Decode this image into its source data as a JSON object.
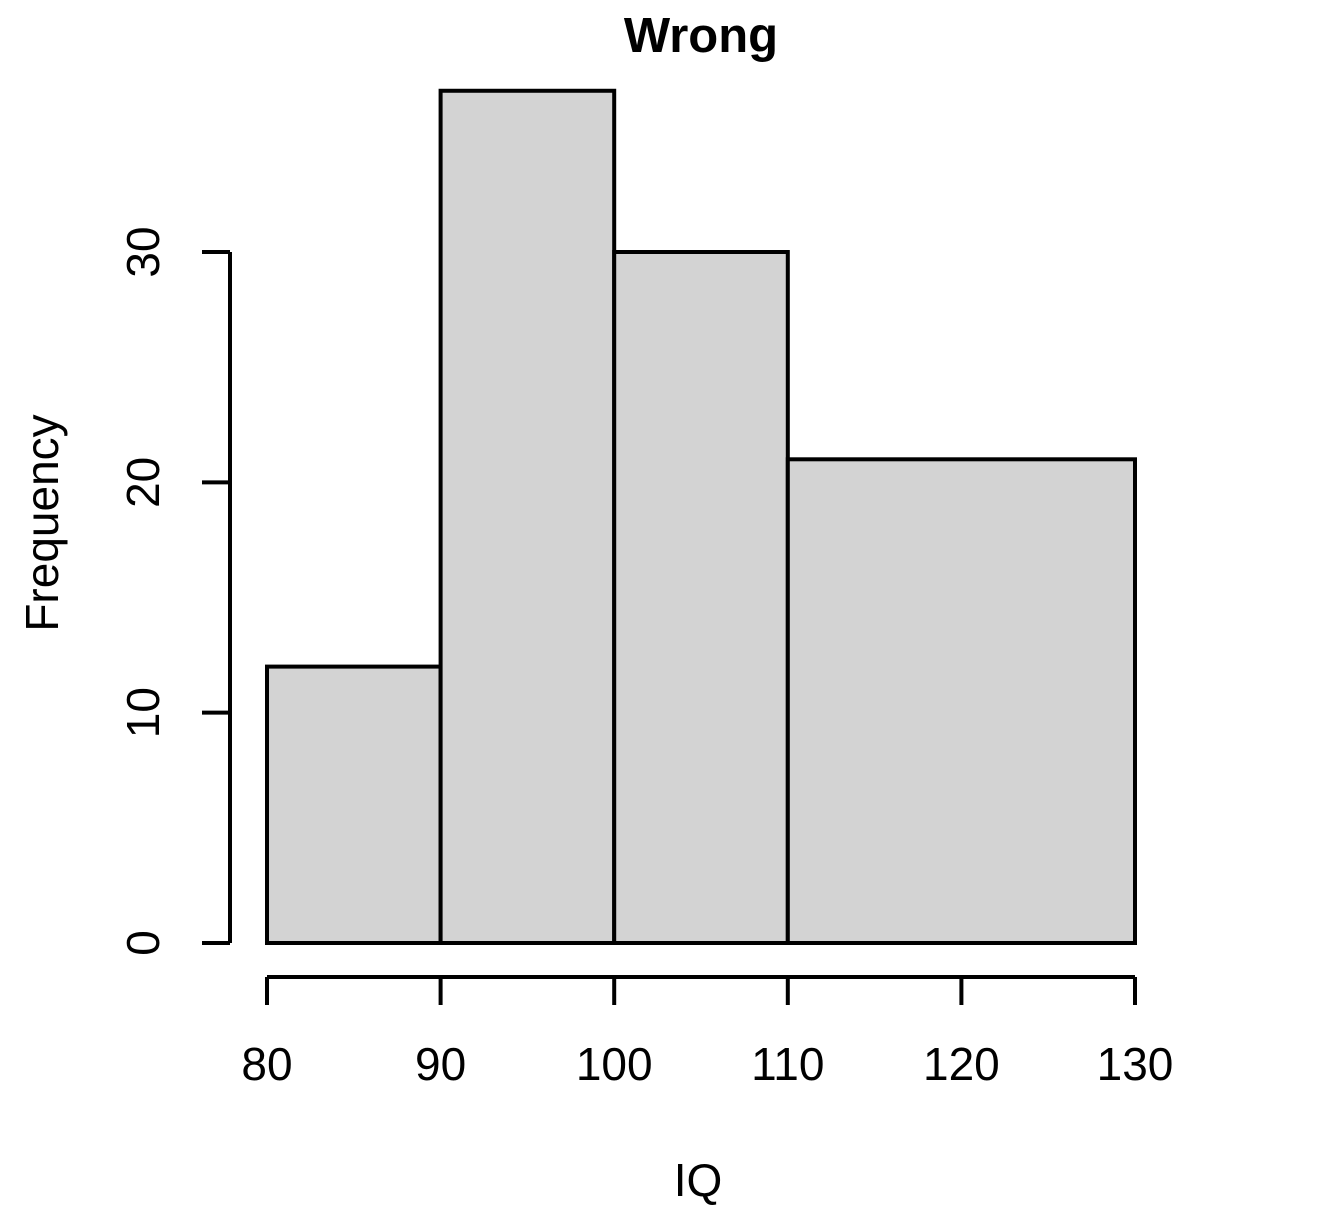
{
  "chart_data": {
    "type": "bar",
    "subtype": "histogram",
    "title": "Wrong",
    "xlabel": "IQ",
    "ylabel": "Frequency",
    "breaks": [
      80,
      90,
      100,
      110,
      130
    ],
    "counts": [
      12,
      37,
      30,
      21
    ],
    "bins": [
      {
        "range": [
          80,
          90
        ],
        "frequency": 12
      },
      {
        "range": [
          90,
          100
        ],
        "frequency": 37
      },
      {
        "range": [
          100,
          110
        ],
        "frequency": 30
      },
      {
        "range": [
          110,
          130
        ],
        "frequency": 21
      }
    ],
    "x_ticks": [
      80,
      90,
      100,
      110,
      120,
      130
    ],
    "y_ticks": [
      0,
      10,
      20,
      30
    ],
    "xlim": [
      80,
      130
    ],
    "ylim": [
      0,
      37
    ],
    "grid": false,
    "legend": false,
    "colors": {
      "bar_fill": "#d3d3d3",
      "bar_border": "#000000",
      "axis": "#000000",
      "text": "#000000",
      "background": "#ffffff"
    }
  }
}
